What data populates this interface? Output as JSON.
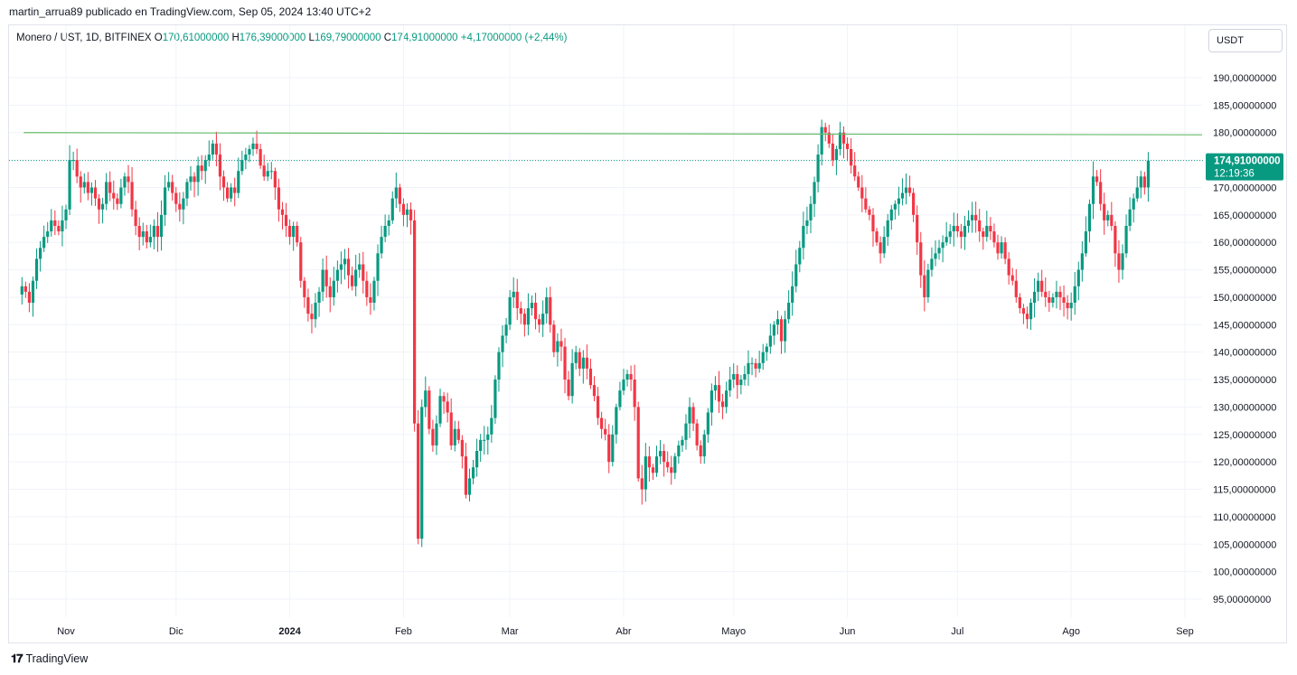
{
  "header": {
    "published": "martin_arrua89 publicado en TradingView.com, Sep 05, 2024 13:40 UTC+2"
  },
  "legend": {
    "symbol": "Monero / UST, 1D, BITFINEX",
    "open_key": "O",
    "open": "170,61000000",
    "high_key": "H",
    "high": "176,39000000",
    "low_key": "L",
    "low": "169,79000000",
    "close_key": "C",
    "close": "174,91000000",
    "change": "+4,17000000 (+2,44%)"
  },
  "currency_button": "USDT",
  "last_price": {
    "price": "174,91000000",
    "countdown": "12:19:36"
  },
  "footer": {
    "brand": "TradingView"
  },
  "colors": {
    "up": "#089981",
    "down": "#f23645",
    "hline": "#66bb6a",
    "badge": "#089981"
  },
  "chart_data": {
    "type": "candlestick",
    "y_ticks": [
      95,
      100,
      105,
      110,
      115,
      120,
      125,
      130,
      135,
      140,
      145,
      150,
      155,
      160,
      165,
      170,
      175,
      180,
      185,
      190
    ],
    "y_tick_labels": [
      "95,00000000",
      "100,00000000",
      "105,00000000",
      "110,00000000",
      "115,00000000",
      "120,00000000",
      "125,00000000",
      "130,00000000",
      "135,00000000",
      "140,00000000",
      "145,00000000",
      "150,00000000",
      "155,00000000",
      "160,00000000",
      "165,00000000",
      "170,00000000",
      "175,00000000",
      "180,00000000",
      "185,00000000",
      "190,00000000"
    ],
    "x_labels": [
      {
        "label": "Nov",
        "date": "2023-11-01",
        "bold": false
      },
      {
        "label": "Dic",
        "date": "2023-12-01",
        "bold": false
      },
      {
        "label": "2024",
        "date": "2024-01-01",
        "bold": true
      },
      {
        "label": "Feb",
        "date": "2024-02-01",
        "bold": false
      },
      {
        "label": "Mar",
        "date": "2024-03-01",
        "bold": false
      },
      {
        "label": "Abr",
        "date": "2024-04-01",
        "bold": false
      },
      {
        "label": "Mayo",
        "date": "2024-05-01",
        "bold": false
      },
      {
        "label": "Jun",
        "date": "2024-06-01",
        "bold": false
      },
      {
        "label": "Jul",
        "date": "2024-07-01",
        "bold": false
      },
      {
        "label": "Ago",
        "date": "2024-08-01",
        "bold": false
      },
      {
        "label": "Sep",
        "date": "2024-09-01",
        "bold": false
      }
    ],
    "trend_line": {
      "start_date": "2023-10-20",
      "start_price": 180.0,
      "end_date": "2024-09-05",
      "end_price": 179.6
    },
    "last_close": 174.91,
    "closes_daily": [
      152,
      151,
      149,
      153,
      157,
      159,
      161,
      162,
      164,
      163,
      162,
      164,
      166,
      175,
      175,
      172,
      170,
      171,
      169,
      170,
      168,
      166,
      167,
      171,
      169,
      168,
      167,
      170,
      172,
      171,
      166,
      163,
      161,
      162,
      160,
      161,
      163,
      161,
      165,
      170,
      171,
      169,
      167,
      166,
      168,
      171,
      172,
      171,
      174,
      173,
      175,
      176,
      178,
      176,
      172,
      170,
      168,
      170,
      169,
      173,
      175,
      176,
      177,
      178,
      177,
      174,
      172,
      173,
      173,
      170,
      166,
      165,
      163,
      161,
      163,
      160,
      153,
      150,
      147,
      146,
      149,
      151,
      155,
      152,
      150,
      153,
      155,
      156,
      157,
      154,
      152,
      155,
      156,
      153,
      150,
      149,
      153,
      158,
      161,
      163,
      164,
      168,
      170,
      167,
      165,
      166,
      164,
      127,
      106,
      130,
      133,
      126,
      123,
      127,
      132,
      131,
      129,
      123,
      126,
      124,
      121,
      114,
      117,
      119,
      122,
      124,
      124,
      125,
      128,
      135,
      140,
      143,
      145,
      150,
      151,
      148,
      147,
      145,
      148,
      149,
      146,
      145,
      147,
      150,
      145,
      140,
      142,
      141,
      135,
      132,
      138,
      140,
      137,
      139,
      137,
      134,
      132,
      128,
      126,
      125,
      120,
      125,
      130,
      133,
      135,
      136,
      135,
      130,
      117,
      115,
      121,
      119,
      118,
      121,
      122,
      120,
      119,
      118,
      121,
      123,
      124,
      127,
      130,
      127,
      123,
      121,
      125,
      129,
      133,
      134,
      131,
      130,
      133,
      135,
      136,
      134,
      135,
      136,
      138,
      138,
      137,
      138,
      140,
      141,
      143,
      145,
      146,
      142,
      146,
      149,
      152,
      156,
      159,
      163,
      164,
      167,
      171,
      176,
      181,
      180,
      178,
      175,
      177,
      180,
      178,
      177,
      174,
      172,
      170,
      168,
      166,
      165,
      162,
      160,
      158,
      161,
      164,
      166,
      167,
      168,
      169,
      170,
      169,
      165,
      160,
      154,
      150,
      155,
      157,
      158,
      159,
      160,
      161,
      162,
      163,
      162,
      161,
      163,
      164,
      165,
      164,
      162,
      161,
      163,
      162,
      160,
      158,
      160,
      157,
      154,
      153,
      150,
      148,
      147,
      146,
      149,
      151,
      153,
      151,
      150,
      149,
      150,
      151,
      150,
      149,
      148,
      149,
      152,
      155,
      158,
      162,
      167,
      172,
      171,
      167,
      164,
      165,
      163,
      158,
      155,
      158,
      163,
      166,
      168,
      170,
      172,
      170,
      174.91
    ],
    "daily_start_date": "2023-10-20"
  }
}
